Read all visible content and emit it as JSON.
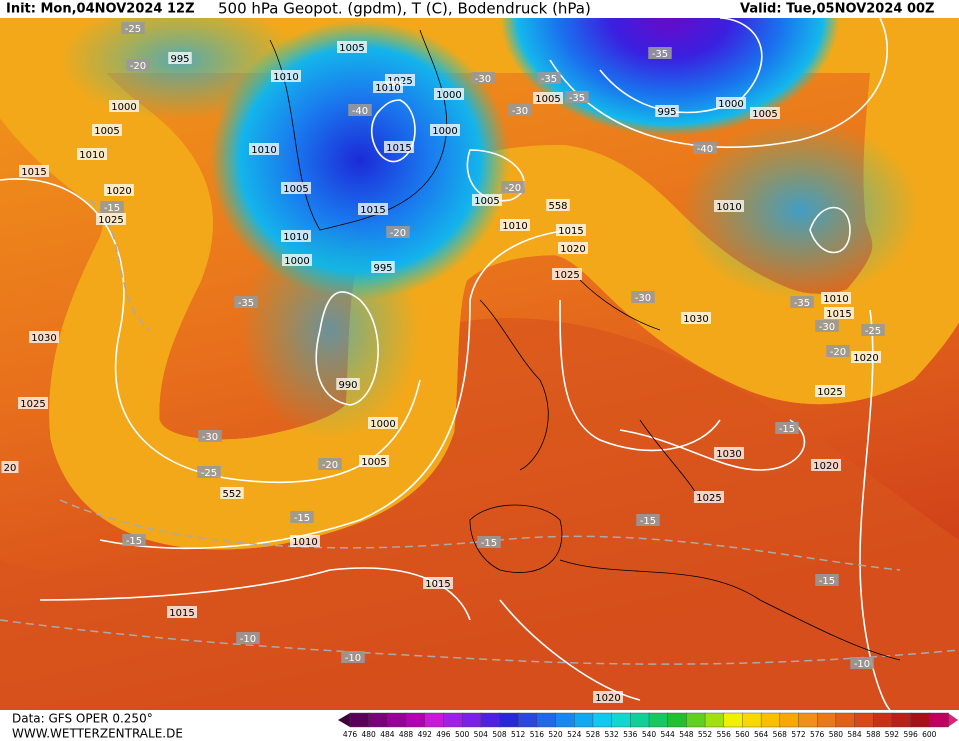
{
  "header": {
    "init": "Init: Mon,04NOV2024 12Z",
    "title": "500 hPa Geopot. (gpdm), T (C), Bodendruck (hPa)",
    "valid": "Valid: Tue,05NOV2024 00Z"
  },
  "contour_labels": [
    "-25",
    "995",
    "-20",
    "1005",
    "1010",
    "1025",
    "1010",
    "1000",
    "1005",
    "1010",
    "1010",
    "-40",
    "1000",
    "1000",
    "1015",
    "-30",
    "-35",
    "1005",
    "-35",
    "-30",
    "-35",
    "995",
    "1000",
    "1005",
    "-40",
    "1015",
    "1020",
    "1005",
    "-15",
    "1025",
    "1015",
    "-20",
    "1005",
    "558",
    "1010",
    "1010",
    "-20",
    "1010",
    "1015",
    "1020",
    "1000",
    "995",
    "1025",
    "-30",
    "-35",
    "-35",
    "1010",
    "1015",
    "1030",
    "-30",
    "-25",
    "-20",
    "1020",
    "1030",
    "990",
    "1025",
    "1025",
    "1000",
    "-15",
    "-30",
    "1005",
    "-20",
    "1030",
    "-25",
    "1020",
    "552",
    "1025",
    "-15",
    "-15",
    "-15",
    "1010",
    "-15",
    "1015",
    "-15",
    "1015",
    "-10",
    "-10",
    "-10",
    "1020",
    "20"
  ],
  "colorbar": {
    "labels": [
      "476",
      "480",
      "484",
      "488",
      "492",
      "496",
      "500",
      "504",
      "508",
      "512",
      "516",
      "520",
      "524",
      "528",
      "532",
      "536",
      "540",
      "544",
      "548",
      "552",
      "556",
      "560",
      "564",
      "568",
      "572",
      "576",
      "580",
      "584",
      "588",
      "592",
      "596",
      "600"
    ]
  },
  "footer": {
    "data": "Data: GFS OPER 0.250°",
    "website": "WWW.WETTERZENTRALE.DE"
  }
}
